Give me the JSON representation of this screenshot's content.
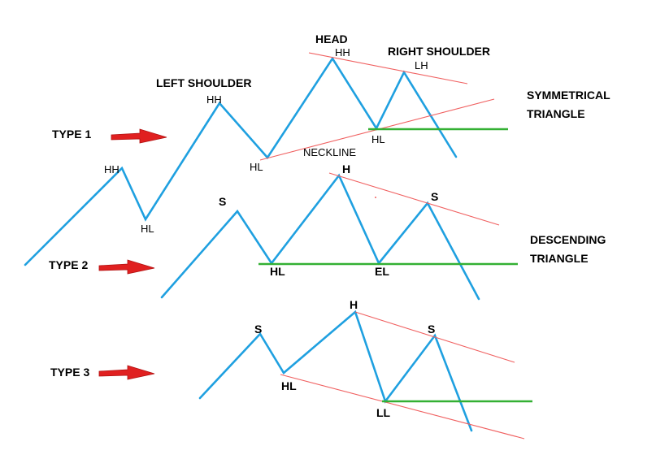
{
  "colors": {
    "wave": "#1fa0e0",
    "trendline": "#f06060",
    "support": "#33b033",
    "arrow": "#e02020",
    "text": "#000000"
  },
  "type1": {
    "label": "TYPE 1",
    "left_shoulder": "LEFT SHOULDER",
    "head": "HEAD",
    "right_shoulder": "RIGHT SHOULDER",
    "hh_first": "HH",
    "hl_first": "HL",
    "hh_shoulder": "HH",
    "hl_neck": "HL",
    "hh_head": "HH",
    "hl_right": "HL",
    "lh": "LH",
    "neckline": "NECKLINE",
    "pattern_line1": "SYMMETRICAL",
    "pattern_line2": "TRIANGLE"
  },
  "type2": {
    "label": "TYPE 2",
    "s_left": "S",
    "hl": "HL",
    "h": "H",
    "el": "EL",
    "s_right": "S",
    "pattern_line1": "DESCENDING",
    "pattern_line2": "TRIANGLE"
  },
  "type3": {
    "label": "TYPE 3",
    "s_left": "S",
    "hl": "HL",
    "h": "H",
    "ll": "LL",
    "s_right": "S"
  }
}
